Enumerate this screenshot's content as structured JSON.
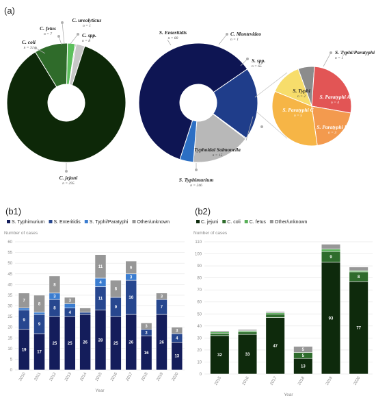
{
  "panels": {
    "a": "(a)",
    "b1": "(b1)",
    "b2": "(b2)"
  },
  "chart_data": [
    {
      "id": "campylobacter",
      "type": "pie",
      "colors": [
        "#0d2808",
        "#2f6b2a",
        "#5cbf5c",
        "#9e9e9e",
        "#c7c7c7"
      ],
      "slices": [
        {
          "label": "C. jejuni",
          "n": "n = 295",
          "value": 295
        },
        {
          "label": "C. coli",
          "n": "n = 31",
          "value": 31
        },
        {
          "label": "C. fetus",
          "n": "n = 7",
          "value": 7
        },
        {
          "label": "C. ureolyticus",
          "n": "n = 1",
          "value": 1
        },
        {
          "label": "C. spp.",
          "n": "n = 8",
          "value": 8
        }
      ]
    },
    {
      "id": "salmonella",
      "type": "pie",
      "colors": [
        "#0e1553",
        "#1f3d8a",
        "#8a8a8a",
        "#b8b8b8",
        "#2c6fc4"
      ],
      "slices": [
        {
          "label": "S. Typhimurium",
          "n": "n = 246",
          "value": 246
        },
        {
          "label": "S. Enteritidis",
          "n": "n = 80",
          "value": 80
        },
        {
          "label": "C. Montevideo",
          "n": "n = 1",
          "value": 1
        },
        {
          "label": "S. spp.",
          "n": "n = 65",
          "value": 65
        },
        {
          "label": "Typhoidal Salmonella",
          "n": "n = 15",
          "value": 15
        }
      ]
    },
    {
      "id": "typhoidal",
      "type": "pie",
      "colors": [
        "#8c8c8c",
        "#e25555",
        "#f39a4e",
        "#f6b546",
        "#f7dd6b"
      ],
      "slices": [
        {
          "label": "S. Typhi/Paratyphi",
          "n": "n = 1",
          "value": 1
        },
        {
          "label": "S. Paratyphi A",
          "n": "n = 4",
          "value": 4
        },
        {
          "label": "S. Paratyphi B",
          "n": "n = 3",
          "value": 3
        },
        {
          "label": "S. Paratyphi C",
          "n": "n = 5",
          "value": 5
        },
        {
          "label": "S. Typhi",
          "n": "n = 2",
          "value": 2
        }
      ]
    },
    {
      "id": "b1",
      "type": "bar",
      "stacked": true,
      "ylabel": "Number of cases",
      "xlabel": "Year",
      "ylim": [
        0,
        60
      ],
      "yticks": [
        0,
        5,
        10,
        15,
        20,
        25,
        30,
        35,
        40,
        45,
        50,
        55,
        60
      ],
      "categories": [
        "2010",
        "2011",
        "2012",
        "2013",
        "2014",
        "2015",
        "2016",
        "2017",
        "2018",
        "2019",
        "2020"
      ],
      "series": [
        {
          "name": "S. Typhimurium",
          "color": "#141d5b",
          "values": [
            19,
            17,
            25,
            25,
            26,
            28,
            25,
            26,
            16,
            26,
            13
          ],
          "labels": [
            "19",
            "17",
            "25",
            "25",
            "26",
            "28",
            "25",
            "26",
            "16",
            "26",
            "13"
          ]
        },
        {
          "name": "S. Enteritidis",
          "color": "#27478f",
          "values": [
            9,
            9,
            8,
            4,
            1,
            11,
            9,
            16,
            3,
            7,
            4
          ],
          "labels": [
            "9",
            "9",
            "8",
            "4",
            "",
            "11",
            "9",
            "16",
            "3",
            "7",
            "4"
          ]
        },
        {
          "name": "S. Typhi/Paratyphi",
          "color": "#3b7dd0",
          "values": [
            1,
            1,
            3,
            2,
            0,
            4,
            0,
            3,
            0,
            0,
            0
          ],
          "labels": [
            "",
            "",
            "3",
            "",
            "",
            "4",
            "",
            "3",
            "",
            "",
            ""
          ]
        },
        {
          "name": "Other/unknown",
          "color": "#979797",
          "values": [
            7,
            8,
            8,
            3,
            2,
            11,
            8,
            6,
            3,
            3,
            3
          ],
          "labels": [
            "7",
            "8",
            "8",
            "3",
            "",
            "11",
            "8",
            "6",
            "3",
            "3",
            "3"
          ]
        }
      ]
    },
    {
      "id": "b2",
      "type": "bar",
      "stacked": true,
      "ylabel": "Number of cases",
      "xlabel": "Year",
      "ylim": [
        0,
        110
      ],
      "yticks": [
        0,
        10,
        20,
        30,
        40,
        50,
        60,
        70,
        80,
        90,
        100,
        110
      ],
      "categories": [
        "2015",
        "2016",
        "2017",
        "2018",
        "2019",
        "2020"
      ],
      "series": [
        {
          "name": "C. jejuni",
          "color": "#0e2a0c",
          "values": [
            32,
            33,
            47,
            13,
            93,
            77
          ],
          "labels": [
            "32",
            "33",
            "47",
            "13",
            "93",
            "77"
          ]
        },
        {
          "name": "C. coli",
          "color": "#2e6c2c",
          "values": [
            2,
            2,
            3,
            5,
            9,
            8
          ],
          "labels": [
            "",
            "",
            "",
            "5",
            "9",
            "8"
          ]
        },
        {
          "name": "C. fetus",
          "color": "#58b058",
          "values": [
            1,
            1,
            1,
            0,
            2,
            1
          ],
          "labels": [
            "",
            "",
            "",
            "",
            "",
            ""
          ]
        },
        {
          "name": "Other/unknown",
          "color": "#979797",
          "values": [
            1,
            1,
            1,
            5,
            4,
            3
          ],
          "labels": [
            "",
            "",
            "",
            "5",
            "",
            ""
          ]
        }
      ]
    }
  ]
}
